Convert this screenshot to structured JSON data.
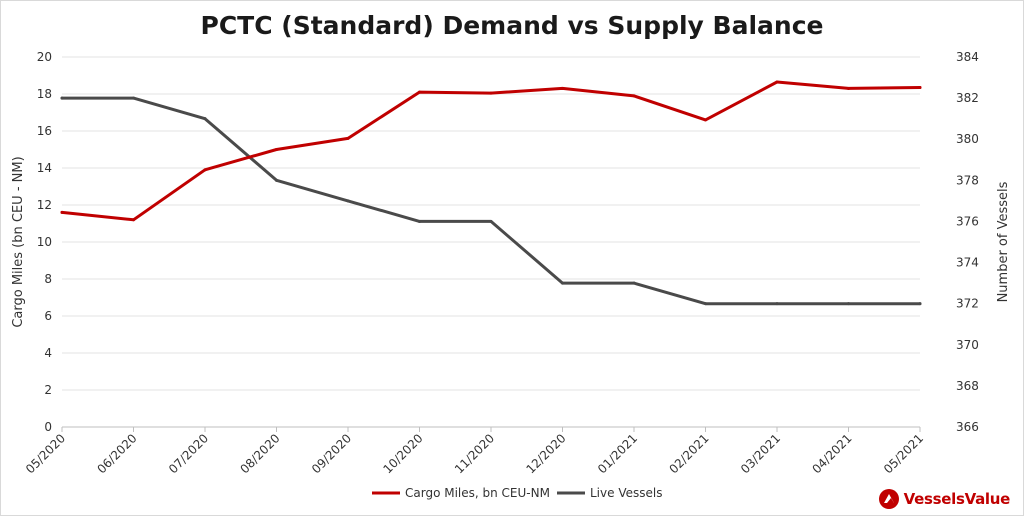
{
  "chart_data": {
    "type": "line",
    "title": "PCTC (Standard) Demand vs Supply Balance",
    "categories": [
      "05/2020",
      "06/2020",
      "07/2020",
      "08/2020",
      "09/2020",
      "10/2020",
      "11/2020",
      "12/2020",
      "01/2021",
      "02/2021",
      "03/2021",
      "04/2021",
      "05/2021"
    ],
    "ylabel_left": "Cargo Miles (bn CEU - NM)",
    "ylabel_right": "Number of Vessels",
    "ylim_left": [
      0,
      20
    ],
    "yticks_left": [
      0,
      2,
      4,
      6,
      8,
      10,
      12,
      14,
      16,
      18,
      20
    ],
    "ylim_right": [
      366,
      384
    ],
    "yticks_right": [
      366,
      368,
      370,
      372,
      374,
      376,
      378,
      380,
      382,
      384
    ],
    "grid": true,
    "legend_position": "bottom",
    "series": [
      {
        "name": "Cargo Miles, bn CEU-NM",
        "axis": "left",
        "color": "#c00000",
        "values": [
          11.6,
          11.2,
          13.9,
          15.0,
          15.6,
          18.1,
          18.05,
          18.3,
          17.9,
          16.6,
          18.65,
          18.3,
          18.35
        ]
      },
      {
        "name": "Live Vessels",
        "axis": "right",
        "color": "#4a4a4a",
        "values": [
          382,
          382,
          381,
          378,
          377,
          376,
          376,
          373,
          373,
          372,
          372,
          372,
          372
        ]
      }
    ]
  },
  "brand": {
    "name": "VesselsValue",
    "color": "#c00000",
    "icon": "vesselsvalue-logo-icon"
  }
}
